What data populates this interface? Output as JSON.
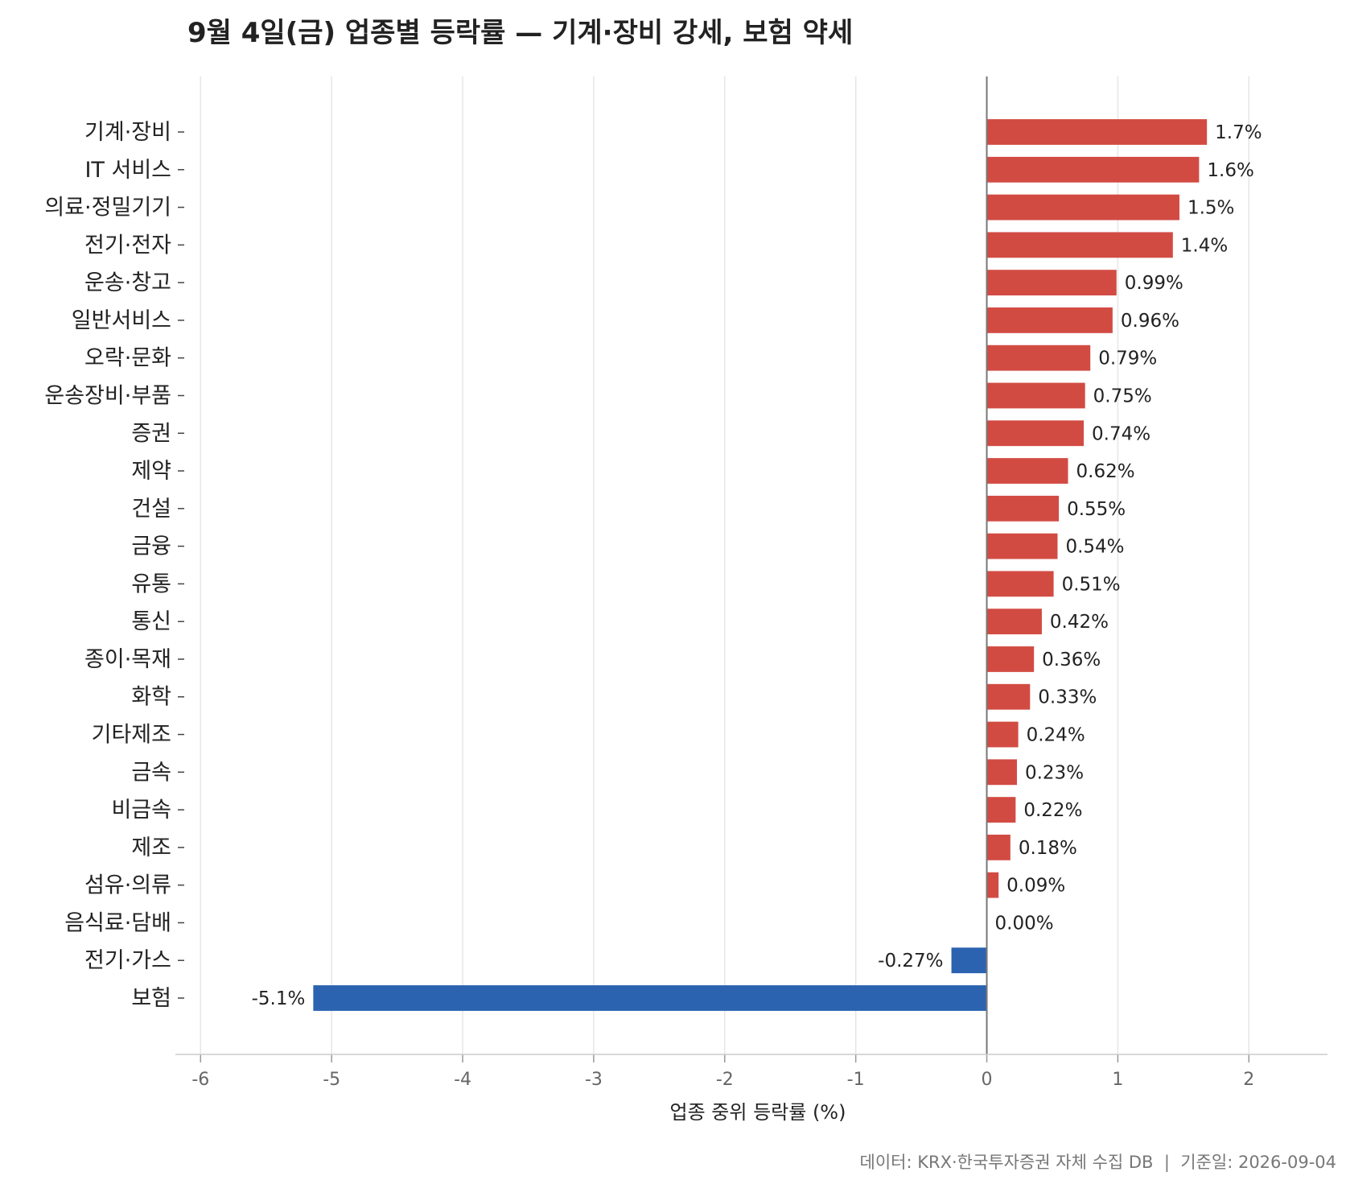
{
  "chart_data": {
    "type": "bar",
    "orientation": "horizontal",
    "title": "9월 4일(금) 업종별 등락률 — 기계·장비 강세, 보험 약세",
    "xlabel": "업종 중위 등락률 (%)",
    "ylabel": "",
    "xlim": [
      -6.1,
      2.6
    ],
    "xticks": [
      -6,
      -5,
      -4,
      -3,
      -2,
      -1,
      0,
      1,
      2
    ],
    "grid": true,
    "categories": [
      "기계·장비",
      "IT 서비스",
      "의료·정밀기기",
      "전기·전자",
      "운송·창고",
      "일반서비스",
      "오락·문화",
      "운송장비·부품",
      "증권",
      "제약",
      "건설",
      "금융",
      "유통",
      "통신",
      "종이·목재",
      "화학",
      "기타제조",
      "금속",
      "비금속",
      "제조",
      "섬유·의류",
      "음식료·담배",
      "전기·가스",
      "보험"
    ],
    "values": [
      1.68,
      1.62,
      1.47,
      1.42,
      0.99,
      0.96,
      0.79,
      0.75,
      0.74,
      0.62,
      0.55,
      0.54,
      0.51,
      0.42,
      0.36,
      0.33,
      0.24,
      0.23,
      0.22,
      0.18,
      0.09,
      0.0,
      -0.27,
      -5.14
    ],
    "value_labels": [
      "1.7%",
      "1.6%",
      "1.5%",
      "1.4%",
      "0.99%",
      "0.96%",
      "0.79%",
      "0.75%",
      "0.74%",
      "0.62%",
      "0.55%",
      "0.54%",
      "0.51%",
      "0.42%",
      "0.36%",
      "0.33%",
      "0.24%",
      "0.23%",
      "0.22%",
      "0.18%",
      "0.09%",
      "0.00%",
      "-0.27%",
      "-5.1%"
    ],
    "colors": {
      "positive": "#d24b43",
      "negative": "#2b63b0"
    }
  },
  "source_note": "데이터: KRX·한국투자증권 자체 수집 DB  |  기준일: 2026-09-04"
}
